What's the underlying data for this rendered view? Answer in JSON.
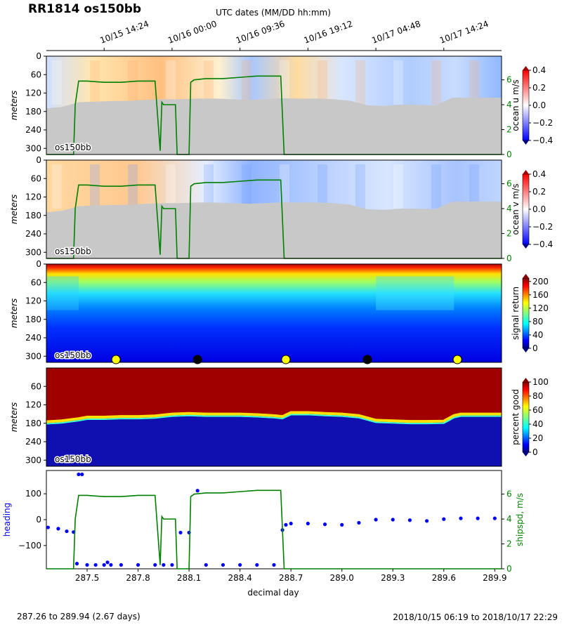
{
  "title": "RR1814 os150bb",
  "top_axis_label": "UTC dates (MM/DD hh:mm)",
  "top_ticks": [
    {
      "x": 287.6,
      "label": "10/15 14:24"
    },
    {
      "x": 288.0,
      "label": "10/16 00:00"
    },
    {
      "x": 288.4,
      "label": "10/16 09:36"
    },
    {
      "x": 288.8,
      "label": "10/16 19:12"
    },
    {
      "x": 289.2,
      "label": "10/17 04:48"
    },
    {
      "x": 289.6,
      "label": "10/17 14:24"
    }
  ],
  "footer_left": "287.26 to 289.94 (2.67 days)",
  "footer_right": "2018/10/15 06:19 to 2018/10/17 22:29",
  "xlabel": "decimal day",
  "colors": {
    "ship_speed": "#008000",
    "heading": "#0000ff",
    "bathymetry": "#c8c8c8"
  },
  "chart_data": [
    {
      "type": "heatmap",
      "panel": "ocean-u",
      "instrument_label": "os150bb",
      "ylabel": "meters",
      "y_ticks": [
        0,
        60,
        120,
        180,
        240,
        300
      ],
      "ylim": [
        320,
        0
      ],
      "xlim": [
        287.26,
        289.94
      ],
      "colorbar_label": "ocean u m/s",
      "colorbar_ticks": [
        "0.4",
        "0.2",
        "0.0",
        "−0.2",
        "−0.4"
      ],
      "colorbar_range": [
        -0.4,
        0.4
      ],
      "colormap": "bwr",
      "right_axis_ticks": [
        "0",
        "2",
        "4",
        "6"
      ],
      "right_axis_range": [
        0,
        7.9
      ],
      "bottom_depth": {
        "x": [
          287.26,
          287.35,
          287.45,
          287.55,
          287.65,
          287.75,
          287.85,
          287.95,
          288.05,
          288.15,
          288.25,
          288.35,
          288.45,
          288.55,
          288.65,
          288.75,
          288.85,
          288.95,
          289.05,
          289.15,
          289.25,
          289.35,
          289.45,
          289.55,
          289.65,
          289.75,
          289.94
        ],
        "y": [
          170,
          165,
          150,
          148,
          146,
          145,
          142,
          140,
          140,
          138,
          138,
          140,
          142,
          140,
          137,
          138,
          138,
          140,
          145,
          160,
          162,
          158,
          158,
          160,
          135,
          135,
          135
        ]
      },
      "overlay_ship_speed": {
        "x": [
          287.26,
          287.42,
          287.43,
          287.45,
          287.5,
          287.6,
          287.7,
          287.8,
          287.9,
          287.93,
          287.94,
          287.95,
          288.0,
          288.02,
          288.03,
          288.1,
          288.11,
          288.13,
          288.2,
          288.3,
          288.4,
          288.5,
          288.6,
          288.64,
          288.66,
          288.7,
          289.94
        ],
        "y": [
          0,
          0,
          4,
          5.9,
          5.9,
          5.8,
          5.8,
          5.9,
          5.9,
          0.3,
          4.2,
          4.0,
          4.0,
          4.0,
          0,
          0,
          5.8,
          6.0,
          6.1,
          6.1,
          6.2,
          6.3,
          6.3,
          6.3,
          0,
          0,
          0
        ]
      }
    },
    {
      "type": "heatmap",
      "panel": "ocean-v",
      "instrument_label": "os150bb",
      "ylabel": "meters",
      "y_ticks": [
        0,
        60,
        120,
        180,
        240,
        300
      ],
      "ylim": [
        320,
        0
      ],
      "xlim": [
        287.26,
        289.94
      ],
      "colorbar_label": "ocean v m/s",
      "colorbar_ticks": [
        "0.4",
        "0.2",
        "0.0",
        "−0.2",
        "−0.4"
      ],
      "colorbar_range": [
        -0.4,
        0.4
      ],
      "colormap": "bwr",
      "right_axis_ticks": [
        "0",
        "2",
        "4",
        "6"
      ],
      "right_axis_range": [
        0,
        7.9
      ]
    },
    {
      "type": "heatmap",
      "panel": "signal-return",
      "instrument_label": "os150bb",
      "ylabel": "meters",
      "y_ticks": [
        0,
        60,
        120,
        180,
        240,
        300
      ],
      "ylim": [
        320,
        0
      ],
      "xlim": [
        287.26,
        289.94
      ],
      "colorbar_label": "signal return",
      "colorbar_ticks": [
        "200",
        "160",
        "120",
        "80",
        "40",
        "0"
      ],
      "colorbar_range": [
        0,
        210
      ],
      "colormap": "jet",
      "markers": [
        {
          "x": 287.67,
          "color": "#ffff00"
        },
        {
          "x": 288.15,
          "color": "#000000"
        },
        {
          "x": 288.67,
          "color": "#ffff00"
        },
        {
          "x": 289.15,
          "color": "#000000"
        },
        {
          "x": 289.68,
          "color": "#ffff00"
        }
      ]
    },
    {
      "type": "heatmap",
      "panel": "percent-good",
      "instrument_label": "os150bb",
      "ylabel": "meters",
      "y_ticks": [
        60,
        120,
        180,
        240,
        300
      ],
      "ylim": [
        320,
        0
      ],
      "xlim": [
        287.26,
        289.94
      ],
      "colorbar_label": "percent good",
      "colorbar_ticks": [
        "100",
        "80",
        "60",
        "40",
        "20",
        "0"
      ],
      "colorbar_range": [
        0,
        100
      ],
      "colormap": "jet",
      "good_depth": {
        "x": [
          287.26,
          287.35,
          287.45,
          287.5,
          287.6,
          287.7,
          287.8,
          287.9,
          288.0,
          288.1,
          288.2,
          288.3,
          288.4,
          288.5,
          288.6,
          288.65,
          288.7,
          288.8,
          288.9,
          289.0,
          289.1,
          289.2,
          289.3,
          289.4,
          289.5,
          289.6,
          289.66,
          289.7,
          289.94
        ],
        "y": [
          175,
          172,
          165,
          160,
          160,
          158,
          158,
          156,
          150,
          148,
          150,
          150,
          150,
          152,
          155,
          158,
          145,
          145,
          148,
          150,
          155,
          170,
          172,
          174,
          174,
          173,
          155,
          150,
          150
        ]
      }
    },
    {
      "type": "scatter",
      "panel": "heading-speed",
      "ylabel": "heading",
      "y_ticks": [
        100,
        0,
        -100
      ],
      "ylim": [
        -190,
        190
      ],
      "xlim": [
        287.26,
        289.94
      ],
      "x_ticks": [
        287.5,
        287.8,
        288.1,
        288.4,
        288.7,
        289.0,
        289.3,
        289.6,
        289.9
      ],
      "x_tick_labels": [
        "287.5",
        "287.8",
        "288.1",
        "288.4",
        "288.7",
        "289.0",
        "289.3",
        "289.6",
        "289.9"
      ],
      "right_label": "shipspd, m/s",
      "right_axis_ticks": [
        "0",
        "2",
        "4",
        "6"
      ],
      "right_axis_range": [
        0,
        7.9
      ],
      "series": [
        {
          "name": "heading",
          "x": [
            287.27,
            287.33,
            287.38,
            287.42,
            287.44,
            287.45,
            287.47,
            287.5,
            287.55,
            287.6,
            287.62,
            287.64,
            287.7,
            287.8,
            287.9,
            287.95,
            288.0,
            288.05,
            288.1,
            288.15,
            288.2,
            288.3,
            288.4,
            288.5,
            288.6,
            288.65,
            288.67,
            288.7,
            288.8,
            288.9,
            289.0,
            289.1,
            289.2,
            289.3,
            289.4,
            289.5,
            289.6,
            289.7,
            289.8,
            289.9
          ],
          "y": [
            -30,
            -35,
            -45,
            -48,
            -170,
            175,
            175,
            -175,
            -175,
            -175,
            -165,
            -175,
            -175,
            -175,
            -175,
            -175,
            -175,
            -50,
            -50,
            112,
            -175,
            -175,
            -175,
            -175,
            -175,
            -40,
            -20,
            -15,
            -15,
            -18,
            -20,
            -12,
            0,
            0,
            -2,
            -5,
            2,
            5,
            5,
            5
          ]
        }
      ]
    }
  ]
}
